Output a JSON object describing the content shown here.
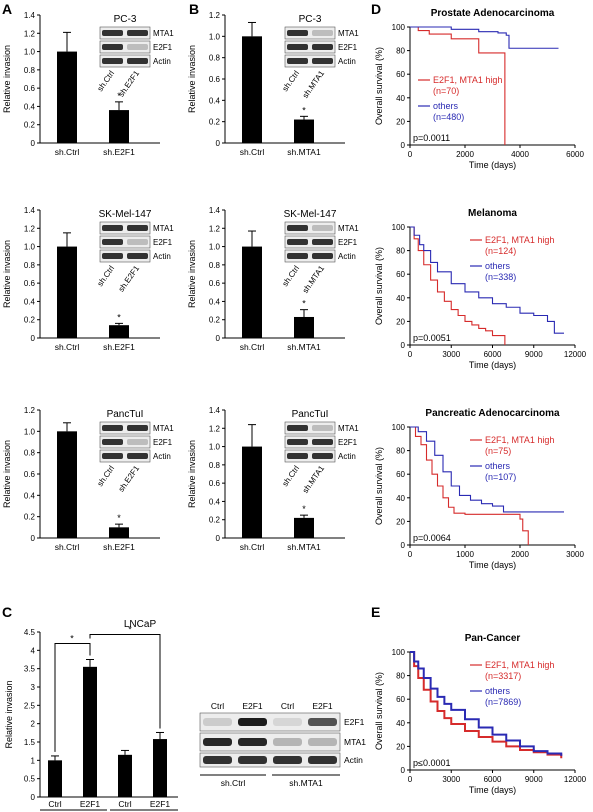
{
  "panel_letters": {
    "A": "A",
    "B": "B",
    "C": "C",
    "D": "D",
    "E": "E"
  },
  "common": {
    "ylabel_invasion": "Relative invasion",
    "ylabel_survival": "Overall survival (%)",
    "xlabel_time": "Time (days)",
    "wb_mta1": "MTA1",
    "wb_e2f1": "E2F1",
    "wb_actin": "Actin"
  },
  "chart_data": [
    {
      "id": "A1",
      "type": "bar",
      "title": "PC-3",
      "categories": [
        "sh.Ctrl",
        "sh.E2F1"
      ],
      "values": [
        1.0,
        0.36
      ],
      "errors": [
        0.21,
        0.09
      ],
      "ylim": [
        0,
        1.4
      ],
      "yticks": [
        "0",
        "0.2",
        "0.4",
        "0.6",
        "0.8",
        "1.0",
        "1.2",
        "1.4"
      ],
      "ylabel": "Relative invasion",
      "star": "*",
      "wb_lanes": [
        "sh.Ctrl",
        "sh.E2F1"
      ],
      "wb_rows": [
        "MTA1",
        "E2F1",
        "Actin"
      ]
    },
    {
      "id": "A2",
      "type": "bar",
      "title": "SK-Mel-147",
      "categories": [
        "sh.Ctrl",
        "sh.E2F1"
      ],
      "values": [
        1.0,
        0.14
      ],
      "errors": [
        0.15,
        0.02
      ],
      "ylim": [
        0,
        1.4
      ],
      "yticks": [
        "0",
        "0.2",
        "0.4",
        "0.6",
        "0.8",
        "1.0",
        "1.2",
        "1.4"
      ],
      "ylabel": "Relative invasion",
      "star": "*",
      "wb_lanes": [
        "sh.Ctrl",
        "sh.E2F1"
      ],
      "wb_rows": [
        "MTA1",
        "E2F1",
        "Actin"
      ]
    },
    {
      "id": "A3",
      "type": "bar",
      "title": "PancTuI",
      "categories": [
        "sh.Ctrl",
        "sh.E2F1"
      ],
      "values": [
        1.0,
        0.1
      ],
      "errors": [
        0.08,
        0.03
      ],
      "ylim": [
        0,
        1.2
      ],
      "yticks": [
        "0",
        "0.2",
        "0.4",
        "0.6",
        "0.8",
        "1.0",
        "1.2"
      ],
      "ylabel": "Relative invasion",
      "star": "*",
      "wb_lanes": [
        "sh.Ctrl",
        "sh.E2F1"
      ],
      "wb_rows": [
        "MTA1",
        "E2F1",
        "Actin"
      ]
    },
    {
      "id": "B1",
      "type": "bar",
      "title": "PC-3",
      "categories": [
        "sh.Ctrl",
        "sh.MTA1"
      ],
      "values": [
        1.0,
        0.22
      ],
      "errors": [
        0.13,
        0.03
      ],
      "ylim": [
        0,
        1.2
      ],
      "yticks": [
        "0",
        "0.2",
        "0.4",
        "0.6",
        "0.8",
        "1.0",
        "1.2"
      ],
      "ylabel": "Relative invasion",
      "star": "*",
      "wb_lanes": [
        "sh.Ctrl",
        "sh.MTA1"
      ],
      "wb_rows": [
        "MTA1",
        "E2F1",
        "Actin"
      ]
    },
    {
      "id": "B2",
      "type": "bar",
      "title": "SK-Mel-147",
      "categories": [
        "sh.Ctrl",
        "sh.MTA1"
      ],
      "values": [
        1.0,
        0.23
      ],
      "errors": [
        0.17,
        0.08
      ],
      "ylim": [
        0,
        1.4
      ],
      "yticks": [
        "0",
        "0.2",
        "0.4",
        "0.6",
        "0.8",
        "1.0",
        "1.2",
        "1.4"
      ],
      "ylabel": "Relative invasion",
      "star": "*",
      "wb_lanes": [
        "sh.Ctrl",
        "sh.MTA1"
      ],
      "wb_rows": [
        "MTA1",
        "E2F1",
        "Actin"
      ]
    },
    {
      "id": "B3",
      "type": "bar",
      "title": "PancTuI",
      "categories": [
        "sh.Ctrl",
        "sh.MTA1"
      ],
      "values": [
        1.0,
        0.22
      ],
      "errors": [
        0.24,
        0.03
      ],
      "ylim": [
        0,
        1.4
      ],
      "yticks": [
        "0",
        "0.2",
        "0.4",
        "0.6",
        "0.8",
        "1.0",
        "1.2",
        "1.4"
      ],
      "ylabel": "Relative invasion",
      "star": "*",
      "wb_lanes": [
        "sh.Ctrl",
        "sh.MTA1"
      ],
      "wb_rows": [
        "MTA1",
        "E2F1",
        "Actin"
      ]
    },
    {
      "id": "C",
      "type": "bar",
      "title": "LNCaP",
      "categories": [
        "Ctrl",
        "E2F1",
        "Ctrl",
        "E2F1"
      ],
      "groups": [
        "sh.Ctrl",
        "sh.MTA1"
      ],
      "values": [
        1.0,
        3.55,
        1.15,
        1.58
      ],
      "errors": [
        0.12,
        0.2,
        0.12,
        0.18
      ],
      "ylim": [
        0,
        4.5
      ],
      "yticks": [
        "0",
        "0.5",
        "1",
        "1.5",
        "2",
        "2.5",
        "3",
        "3.5",
        "4",
        "4.5"
      ],
      "ylabel": "Relative invasion",
      "star": "*",
      "wb_lanes": [
        "Ctrl",
        "E2F1",
        "Ctrl",
        "E2F1"
      ],
      "wb_groups": [
        "sh.Ctrl",
        "sh.MTA1"
      ],
      "wb_rows": [
        "E2F1",
        "MTA1",
        "Actin"
      ]
    },
    {
      "id": "D1",
      "type": "line",
      "title": "Prostate Adenocarcinoma",
      "xlim": [
        0,
        6000
      ],
      "ylim": [
        0,
        100
      ],
      "xticks": [
        "0",
        "2000",
        "4000",
        "6000"
      ],
      "yticks": [
        "0",
        "20",
        "40",
        "60",
        "80",
        "100"
      ],
      "xlabel": "Time (days)",
      "ylabel": "Overall survival (%)",
      "pvalue": "p=0.0011",
      "series": [
        {
          "name": "E2F1, MTA1 high",
          "n": "(n=70)",
          "color": "#d62b2b",
          "points": [
            [
              0,
              100
            ],
            [
              300,
              97
            ],
            [
              700,
              94
            ],
            [
              1300,
              94
            ],
            [
              1500,
              90
            ],
            [
              2300,
              90
            ],
            [
              2500,
              78
            ],
            [
              3450,
              78
            ],
            [
              3450,
              0
            ]
          ]
        },
        {
          "name": "others",
          "n": "(n=480)",
          "color": "#2a2ab3",
          "points": [
            [
              0,
              100
            ],
            [
              1500,
              98
            ],
            [
              2500,
              96
            ],
            [
              3200,
              95
            ],
            [
              3500,
              93
            ],
            [
              3600,
              82
            ],
            [
              5400,
              82
            ]
          ]
        }
      ]
    },
    {
      "id": "D2",
      "type": "line",
      "title": "Melanoma",
      "xlim": [
        0,
        12000
      ],
      "ylim": [
        0,
        100
      ],
      "xticks": [
        "0",
        "3000",
        "6000",
        "9000",
        "12000"
      ],
      "yticks": [
        "0",
        "20",
        "40",
        "60",
        "80",
        "100"
      ],
      "xlabel": "Time (days)",
      "ylabel": "Overall survival (%)",
      "pvalue": "p=0.0051",
      "series": [
        {
          "name": "E2F1, MTA1 high",
          "n": "(n=124)",
          "color": "#d62b2b",
          "points": [
            [
              0,
              100
            ],
            [
              300,
              90
            ],
            [
              600,
              80
            ],
            [
              1000,
              68
            ],
            [
              1500,
              55
            ],
            [
              2000,
              45
            ],
            [
              2500,
              37
            ],
            [
              3000,
              30
            ],
            [
              3500,
              25
            ],
            [
              4000,
              20
            ],
            [
              4500,
              17
            ],
            [
              5000,
              14
            ],
            [
              5500,
              12
            ],
            [
              6000,
              8
            ],
            [
              6900,
              8
            ],
            [
              6900,
              0
            ]
          ]
        },
        {
          "name": "others",
          "n": "(n=338)",
          "color": "#2a2ab3",
          "points": [
            [
              0,
              100
            ],
            [
              300,
              93
            ],
            [
              700,
              85
            ],
            [
              1000,
              80
            ],
            [
              1500,
              70
            ],
            [
              2000,
              62
            ],
            [
              3000,
              52
            ],
            [
              4000,
              45
            ],
            [
              5000,
              40
            ],
            [
              6000,
              35
            ],
            [
              7000,
              32
            ],
            [
              8000,
              27
            ],
            [
              9000,
              25
            ],
            [
              10000,
              20
            ],
            [
              10500,
              10
            ],
            [
              11200,
              10
            ]
          ]
        }
      ]
    },
    {
      "id": "D3",
      "type": "line",
      "title": "Pancreatic Adenocarcinoma",
      "xlim": [
        0,
        3000
      ],
      "ylim": [
        0,
        100
      ],
      "xticks": [
        "0",
        "1000",
        "2000",
        "3000"
      ],
      "yticks": [
        "0",
        "20",
        "40",
        "60",
        "80",
        "100"
      ],
      "xlabel": "Time (days)",
      "ylabel": "Overall survival (%)",
      "pvalue": "p=0.0064",
      "series": [
        {
          "name": "E2F1, MTA1 high",
          "n": "(n=75)",
          "color": "#d62b2b",
          "points": [
            [
              0,
              100
            ],
            [
              100,
              92
            ],
            [
              200,
              85
            ],
            [
              300,
              72
            ],
            [
              400,
              60
            ],
            [
              500,
              50
            ],
            [
              600,
              40
            ],
            [
              700,
              32
            ],
            [
              800,
              27
            ],
            [
              1000,
              26
            ],
            [
              1900,
              26
            ],
            [
              2000,
              22
            ],
            [
              2050,
              12
            ],
            [
              2150,
              12
            ],
            [
              2150,
              0
            ]
          ]
        },
        {
          "name": "others",
          "n": "(n=107)",
          "color": "#2a2ab3",
          "points": [
            [
              0,
              100
            ],
            [
              150,
              96
            ],
            [
              300,
              88
            ],
            [
              450,
              76
            ],
            [
              600,
              62
            ],
            [
              750,
              50
            ],
            [
              900,
              42
            ],
            [
              1100,
              38
            ],
            [
              1300,
              35
            ],
            [
              1500,
              33
            ],
            [
              1700,
              28
            ],
            [
              2800,
              28
            ]
          ]
        }
      ]
    },
    {
      "id": "E",
      "type": "line",
      "title": "Pan-Cancer",
      "xlim": [
        0,
        12000
      ],
      "ylim": [
        0,
        100
      ],
      "xticks": [
        "0",
        "3000",
        "6000",
        "9000",
        "12000"
      ],
      "yticks": [
        "0",
        "20",
        "40",
        "60",
        "80",
        "100"
      ],
      "xlabel": "Time (days)",
      "ylabel": "Overall survival (%)",
      "pvalue": "p≤0.0001",
      "series": [
        {
          "name": "E2F1, MTA1 high",
          "n": "(n=3317)",
          "color": "#d62b2b",
          "points": [
            [
              0,
              100
            ],
            [
              300,
              88
            ],
            [
              600,
              78
            ],
            [
              1000,
              68
            ],
            [
              1500,
              58
            ],
            [
              2000,
              50
            ],
            [
              2500,
              44
            ],
            [
              3000,
              39
            ],
            [
              4000,
              33
            ],
            [
              5000,
              28
            ],
            [
              6000,
              24
            ],
            [
              7000,
              20
            ],
            [
              8000,
              17
            ],
            [
              9000,
              15
            ],
            [
              10000,
              13
            ],
            [
              11000,
              10
            ]
          ]
        },
        {
          "name": "others",
          "n": "(n=7869)",
          "color": "#2a2ab3",
          "points": [
            [
              0,
              100
            ],
            [
              300,
              92
            ],
            [
              600,
              86
            ],
            [
              1000,
              78
            ],
            [
              1500,
              69
            ],
            [
              2000,
              62
            ],
            [
              2500,
              56
            ],
            [
              3000,
              51
            ],
            [
              4000,
              43
            ],
            [
              5000,
              36
            ],
            [
              6000,
              30
            ],
            [
              7000,
              25
            ],
            [
              8000,
              20
            ],
            [
              9000,
              16
            ],
            [
              10000,
              14
            ],
            [
              11000,
              12
            ]
          ]
        }
      ]
    }
  ]
}
